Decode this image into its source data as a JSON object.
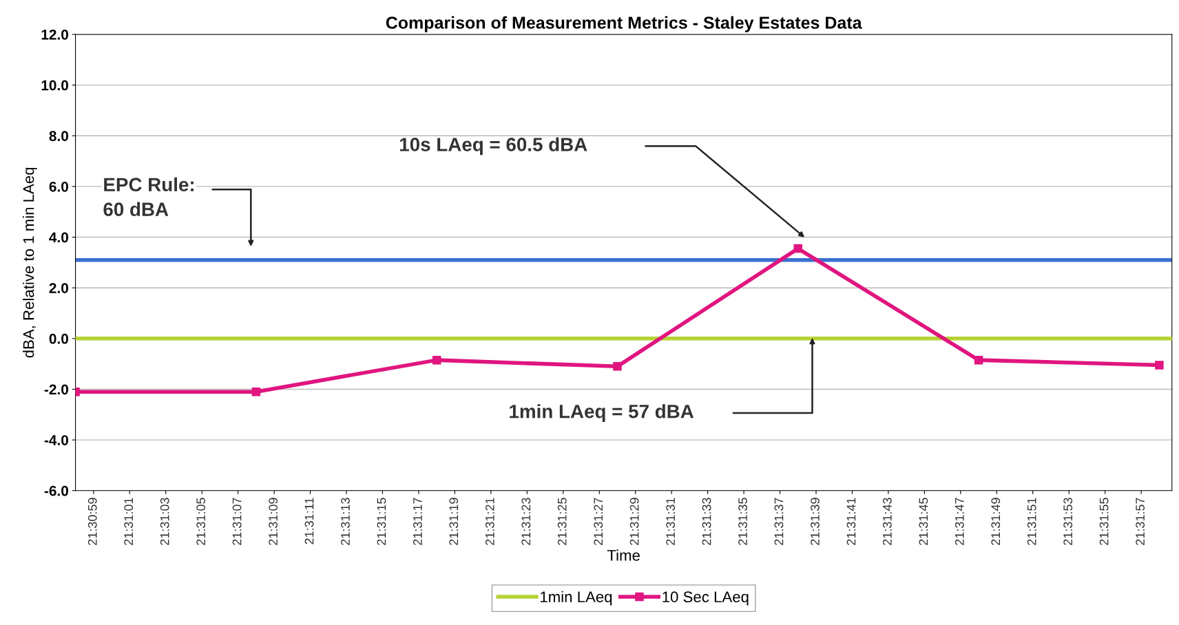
{
  "chart_data": {
    "type": "line",
    "title": "Comparison of Measurement Metrics - Staley Estates Data",
    "xlabel": "Time",
    "ylabel": "dBA, Relative to 1 min LAeq",
    "series": [
      {
        "name": "1min LAeq",
        "color": "#b5d334",
        "marker": "none",
        "x": [
          21.516111,
          21.532972
        ],
        "values": [
          0,
          0
        ]
      },
      {
        "name": "10 Sec LAeq",
        "color": "#e0157f",
        "marker": "square",
        "x": [
          21.516111,
          21.518889,
          21.521667,
          21.524444,
          21.527222,
          21.53,
          21.532778
        ],
        "values": [
          -2.1,
          -2.1,
          -0.85,
          -1.1,
          3.55,
          -0.85,
          -1.05
        ]
      }
    ],
    "ref_lines": [
      {
        "axis": "y",
        "value": 3.1,
        "color": "#3a6fd0"
      }
    ],
    "annotations": [
      "EPC Rule:\n60 dBA",
      "10s LAeq = 60.5 dBA",
      "1min LAeq = 57 dBA"
    ],
    "xlim": [
      21.516111,
      21.532972
    ],
    "xticks": [
      {
        "value": 21.516389,
        "label": "21:30:59"
      },
      {
        "value": 21.516944,
        "label": "21:31:01"
      },
      {
        "value": 21.5175,
        "label": "21:31:03"
      },
      {
        "value": 21.518056,
        "label": "21:31:05"
      },
      {
        "value": 21.518611,
        "label": "21:31:07"
      },
      {
        "value": 21.519167,
        "label": "21:31:09"
      },
      {
        "value": 21.519722,
        "label": "21:31:11"
      },
      {
        "value": 21.520278,
        "label": "21:31:13"
      },
      {
        "value": 21.520833,
        "label": "21:31:15"
      },
      {
        "value": 21.521389,
        "label": "21:31:17"
      },
      {
        "value": 21.521944,
        "label": "21:31:19"
      },
      {
        "value": 21.5225,
        "label": "21:31:21"
      },
      {
        "value": 21.523056,
        "label": "21:31:23"
      },
      {
        "value": 21.523611,
        "label": "21:31:25"
      },
      {
        "value": 21.524167,
        "label": "21:31:27"
      },
      {
        "value": 21.524722,
        "label": "21:31:29"
      },
      {
        "value": 21.525278,
        "label": "21:31:31"
      },
      {
        "value": 21.525833,
        "label": "21:31:33"
      },
      {
        "value": 21.526389,
        "label": "21:31:35"
      },
      {
        "value": 21.526944,
        "label": "21:31:37"
      },
      {
        "value": 21.5275,
        "label": "21:31:39"
      },
      {
        "value": 21.528056,
        "label": "21:31:41"
      },
      {
        "value": 21.528611,
        "label": "21:31:43"
      },
      {
        "value": 21.529167,
        "label": "21:31:45"
      },
      {
        "value": 21.529722,
        "label": "21:31:47"
      },
      {
        "value": 21.530278,
        "label": "21:31:49"
      },
      {
        "value": 21.530833,
        "label": "21:31:51"
      },
      {
        "value": 21.531389,
        "label": "21:31:53"
      },
      {
        "value": 21.531944,
        "label": "21:31:55"
      },
      {
        "value": 21.5325,
        "label": "21:31:57"
      }
    ],
    "ylim": [
      -6,
      12
    ],
    "yticks": [
      {
        "value": -6,
        "label": "-6.0"
      },
      {
        "value": -4,
        "label": "-4.0"
      },
      {
        "value": -2,
        "label": "-2.0"
      },
      {
        "value": 0,
        "label": "0.0"
      },
      {
        "value": 2,
        "label": "2.0"
      },
      {
        "value": 4,
        "label": "4.0"
      },
      {
        "value": 6,
        "label": "6.0"
      },
      {
        "value": 8,
        "label": "8.0"
      },
      {
        "value": 10,
        "label": "10.0"
      },
      {
        "value": 12,
        "label": "12.0"
      }
    ],
    "grid": "y",
    "legend": "bottom",
    "line_style": "solid"
  }
}
